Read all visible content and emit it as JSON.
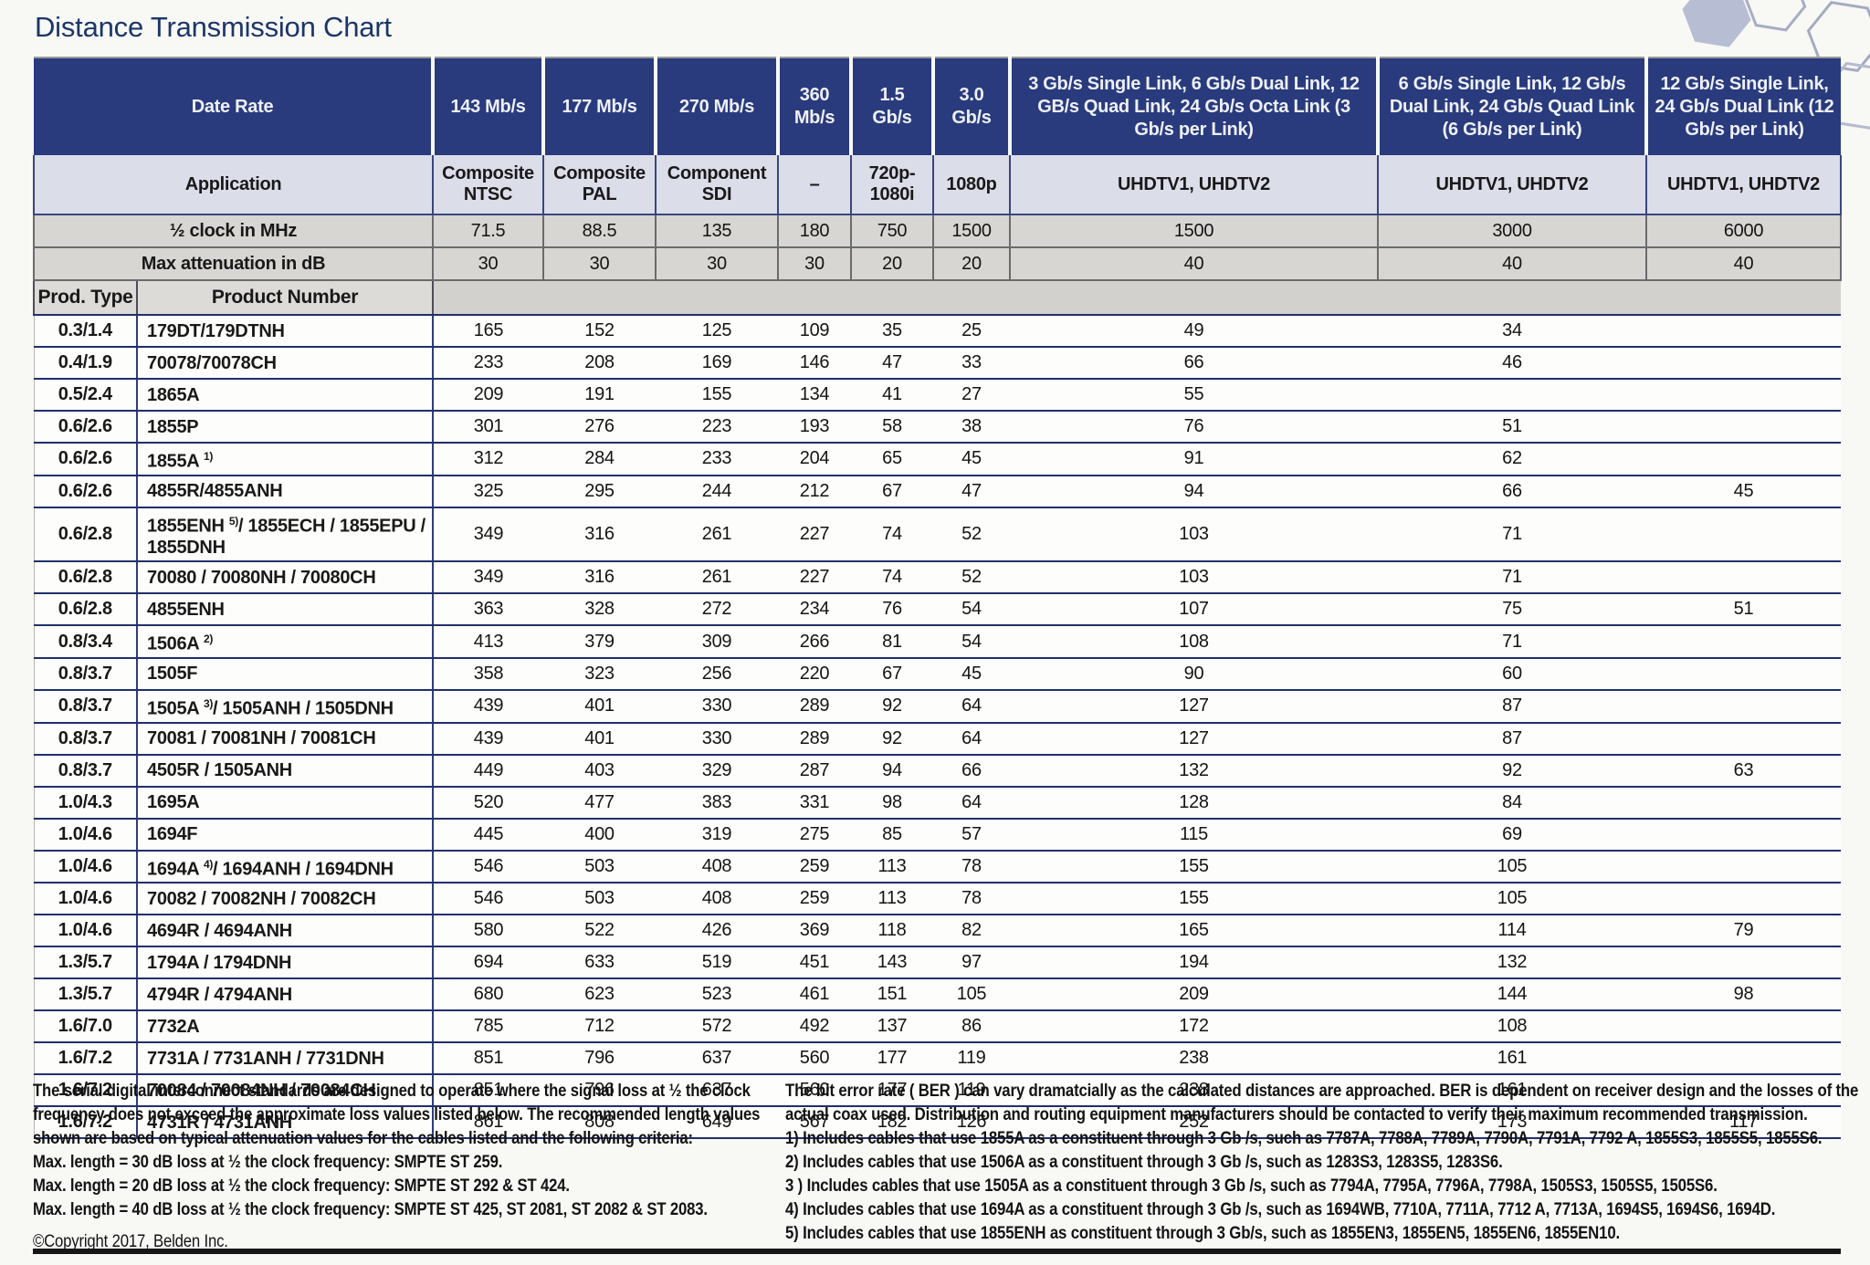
{
  "title": "Distance Transmission Chart",
  "colors": {
    "title_navy": "#1c3667",
    "header_navy": "#293b7d",
    "header_text": "#eef0f8",
    "application_row_bg": "#dbdde9",
    "gray_row_bg": "#d7d6d2",
    "row_divider_navy": "#20306b",
    "paper": "#f8f8f5"
  },
  "table": {
    "date_rate_label": "Date Rate",
    "application_label": "Application",
    "clock_label": "½ clock in MHz",
    "attenuation_label": "Max attenuation in dB",
    "prod_type_label": "Prod. Type",
    "product_number_label": "Product Number",
    "columns": [
      {
        "rate": "143 Mb/s",
        "application": "Composite NTSC",
        "clock": "71.5",
        "attenuation": "30"
      },
      {
        "rate": "177 Mb/s",
        "application": "Composite PAL",
        "clock": "88.5",
        "attenuation": "30"
      },
      {
        "rate": "270 Mb/s",
        "application": "Component SDI",
        "clock": "135",
        "attenuation": "30"
      },
      {
        "rate": "360 Mb/s",
        "application": "–",
        "clock": "180",
        "attenuation": "30"
      },
      {
        "rate": "1.5 Gb/s",
        "application": "720p-1080i",
        "clock": "750",
        "attenuation": "20"
      },
      {
        "rate": "3.0 Gb/s",
        "application": "1080p",
        "clock": "1500",
        "attenuation": "20"
      },
      {
        "rate": "3 Gb/s Single Link, 6 Gb/s Dual Link, 12 GB/s Quad Link, 24 Gb/s Octa Link (3 Gb/s per Link)",
        "application": "UHDTV1, UHDTV2",
        "clock": "1500",
        "attenuation": "40"
      },
      {
        "rate": "6 Gb/s Single Link, 12 Gb/s Dual Link, 24 Gb/s Quad Link (6 Gb/s per Link)",
        "application": "UHDTV1, UHDTV2",
        "clock": "3000",
        "attenuation": "40"
      },
      {
        "rate": "12 Gb/s Single Link, 24 Gb/s Dual Link (12 Gb/s per Link)",
        "application": "UHDTV1, UHDTV2",
        "clock": "6000",
        "attenuation": "40"
      }
    ],
    "rows": [
      {
        "type": "0.3/1.4",
        "product": "179DT/179DTNH",
        "sup": "",
        "product_rest": "",
        "values": [
          "165",
          "152",
          "125",
          "109",
          "35",
          "25",
          "49",
          "34",
          ""
        ]
      },
      {
        "type": "0.4/1.9",
        "product": "70078/70078CH",
        "sup": "",
        "product_rest": "",
        "values": [
          "233",
          "208",
          "169",
          "146",
          "47",
          "33",
          "66",
          "46",
          ""
        ]
      },
      {
        "type": "0.5/2.4",
        "product": "1865A",
        "sup": "",
        "product_rest": "",
        "values": [
          "209",
          "191",
          "155",
          "134",
          "41",
          "27",
          "55",
          "",
          ""
        ]
      },
      {
        "type": "0.6/2.6",
        "product": "1855P",
        "sup": "",
        "product_rest": "",
        "values": [
          "301",
          "276",
          "223",
          "193",
          "58",
          "38",
          "76",
          "51",
          ""
        ]
      },
      {
        "type": "0.6/2.6",
        "product": "1855A",
        "sup": "1)",
        "product_rest": "",
        "values": [
          "312",
          "284",
          "233",
          "204",
          "65",
          "45",
          "91",
          "62",
          ""
        ]
      },
      {
        "type": "0.6/2.6",
        "product": "4855R/4855ANH",
        "sup": "",
        "product_rest": "",
        "values": [
          "325",
          "295",
          "244",
          "212",
          "67",
          "47",
          "94",
          "66",
          "45"
        ]
      },
      {
        "type": "0.6/2.8",
        "product": "1855ENH",
        "sup": "5)",
        "product_rest": "/ 1855ECH / 1855EPU / 1855DNH",
        "values": [
          "349",
          "316",
          "261",
          "227",
          "74",
          "52",
          "103",
          "71",
          ""
        ]
      },
      {
        "type": "0.6/2.8",
        "product": "70080 / 70080NH / 70080CH",
        "sup": "",
        "product_rest": "",
        "values": [
          "349",
          "316",
          "261",
          "227",
          "74",
          "52",
          "103",
          "71",
          ""
        ]
      },
      {
        "type": "0.6/2.8",
        "product": "4855ENH",
        "sup": "",
        "product_rest": "",
        "values": [
          "363",
          "328",
          "272",
          "234",
          "76",
          "54",
          "107",
          "75",
          "51"
        ]
      },
      {
        "type": "0.8/3.4",
        "product": "1506A",
        "sup": "2)",
        "product_rest": "",
        "values": [
          "413",
          "379",
          "309",
          "266",
          "81",
          "54",
          "108",
          "71",
          ""
        ]
      },
      {
        "type": "0.8/3.7",
        "product": "1505F",
        "sup": "",
        "product_rest": "",
        "values": [
          "358",
          "323",
          "256",
          "220",
          "67",
          "45",
          "90",
          "60",
          ""
        ]
      },
      {
        "type": "0.8/3.7",
        "product": "1505A",
        "sup": "3)",
        "product_rest": "/ 1505ANH / 1505DNH",
        "values": [
          "439",
          "401",
          "330",
          "289",
          "92",
          "64",
          "127",
          "87",
          ""
        ]
      },
      {
        "type": "0.8/3.7",
        "product": "70081 / 70081NH / 70081CH",
        "sup": "",
        "product_rest": "",
        "values": [
          "439",
          "401",
          "330",
          "289",
          "92",
          "64",
          "127",
          "87",
          ""
        ]
      },
      {
        "type": "0.8/3.7",
        "product": "4505R / 1505ANH",
        "sup": "",
        "product_rest": "",
        "values": [
          "449",
          "403",
          "329",
          "287",
          "94",
          "66",
          "132",
          "92",
          "63"
        ]
      },
      {
        "type": "1.0/4.3",
        "product": "1695A",
        "sup": "",
        "product_rest": "",
        "values": [
          "520",
          "477",
          "383",
          "331",
          "98",
          "64",
          "128",
          "84",
          ""
        ]
      },
      {
        "type": "1.0/4.6",
        "product": "1694F",
        "sup": "",
        "product_rest": "",
        "values": [
          "445",
          "400",
          "319",
          "275",
          "85",
          "57",
          "115",
          "69",
          ""
        ]
      },
      {
        "type": "1.0/4.6",
        "product": "1694A",
        "sup": "4)",
        "product_rest": "/ 1694ANH / 1694DNH",
        "values": [
          "546",
          "503",
          "408",
          "259",
          "113",
          "78",
          "155",
          "105",
          ""
        ]
      },
      {
        "type": "1.0/4.6",
        "product": "70082 / 70082NH / 70082CH",
        "sup": "",
        "product_rest": "",
        "values": [
          "546",
          "503",
          "408",
          "259",
          "113",
          "78",
          "155",
          "105",
          ""
        ]
      },
      {
        "type": "1.0/4.6",
        "product": "4694R / 4694ANH",
        "sup": "",
        "product_rest": "",
        "values": [
          "580",
          "522",
          "426",
          "369",
          "118",
          "82",
          "165",
          "114",
          "79"
        ]
      },
      {
        "type": "1.3/5.7",
        "product": "1794A / 1794DNH",
        "sup": "",
        "product_rest": "",
        "values": [
          "694",
          "633",
          "519",
          "451",
          "143",
          "97",
          "194",
          "132",
          ""
        ]
      },
      {
        "type": "1.3/5.7",
        "product": "4794R / 4794ANH",
        "sup": "",
        "product_rest": "",
        "values": [
          "680",
          "623",
          "523",
          "461",
          "151",
          "105",
          "209",
          "144",
          "98"
        ]
      },
      {
        "type": "1.6/7.0",
        "product": "7732A",
        "sup": "",
        "product_rest": "",
        "values": [
          "785",
          "712",
          "572",
          "492",
          "137",
          "86",
          "172",
          "108",
          ""
        ]
      },
      {
        "type": "1.6/7.2",
        "product": "7731A / 7731ANH / 7731DNH",
        "sup": "",
        "product_rest": "",
        "values": [
          "851",
          "796",
          "637",
          "560",
          "177",
          "119",
          "238",
          "161",
          ""
        ]
      },
      {
        "type": "1.6/7.2",
        "product": "70084 / 70084NH / 70084CH",
        "sup": "",
        "product_rest": "",
        "values": [
          "851",
          "796",
          "637",
          "560",
          "177",
          "119",
          "238",
          "161",
          ""
        ]
      },
      {
        "type": "1.6/7.2",
        "product": "4731R / 4731ANH",
        "sup": "",
        "product_rest": "",
        "values": [
          "861",
          "808",
          "649",
          "567",
          "182",
          "126",
          "252",
          "173",
          "117"
        ]
      }
    ]
  },
  "footer": {
    "left_para": "The serial digital interconnect standards are designed to operate where the signal loss at ½ the clock frequency does not exceed the approximate loss values listed below. The recommended length values shown are based on typical attenuation values for the cables listed and the following criteria:",
    "left_lines": [
      "Max. length = 30 dB loss at ½ the clock frequency: SMPTE ST 259.",
      "Max. length = 20 dB loss at ½ the clock frequency: SMPTE ST 292 & ST 424.",
      "Max. length = 40 dB loss at ½ the clock frequency: SMPTE ST 425, ST 2081, ST 2082 & ST 2083."
    ],
    "copyright": "©Copyright 2017, Belden Inc.",
    "right_para": "The bit error rate ( BER ) can vary dramatcially as the calculated distances are approached. BER is dependent on receiver design and the losses of the actual coax used. Distribution and routing equipment manufacturers should be contacted to verify their maximum recommended transmission.",
    "notes": [
      "1) Includes cables that use 1855A as a constituent through 3 Gb /s, such as 7787A, 7788A, 7789A, 7790A, 7791A, 7792 A, 1855S3, 1855S5, 1855S6.",
      "2) Includes cables that use 1506A as a constituent through 3 Gb /s, such as 1283S3, 1283S5, 1283S6.",
      "3 ) Includes cables that use 1505A as a constituent through 3 Gb /s, such as 7794A, 7795A, 7796A, 7798A, 1505S3, 1505S5, 1505S6.",
      "4) Includes cables that use 1694A as a constituent through 3 Gb /s, such as 1694WB, 7710A, 7711A, 7712 A, 7713A, 1694S5, 1694S6, 1694D.",
      "5) Includes cables that use 1855ENH as constituent through 3 Gb/s, such as 1855EN3, 1855EN5, 1855EN6, 1855EN10."
    ]
  }
}
